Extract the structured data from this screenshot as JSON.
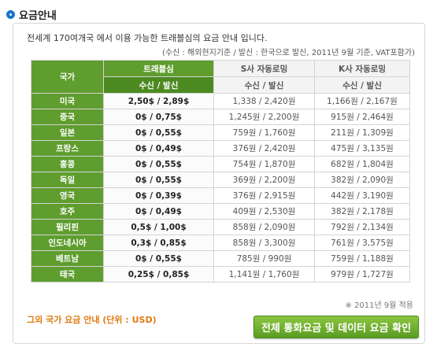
{
  "title": "요금안내",
  "intro": "전세계 170여개국 에서 이용 가능한 트래블심의 요금 안내 입니다.",
  "note": "(수신 : 해외현지기준 / 발신 : 한국으로 발신, 2011년 9월 기준, VAT포함가)",
  "table": {
    "country_header": "국가",
    "col1_name": "트래블심",
    "col2_name": "S사 자동로밍",
    "col3_name": "K사 자동로밍",
    "sub_header": "수신 / 발신",
    "rows": [
      {
        "country": "미국",
        "c1": "2,50$ / 2,89$",
        "c2": "1,338 / 2,420원",
        "c3": "1,166원 / 2,167원"
      },
      {
        "country": "중국",
        "c1": "0$ / 0,75$",
        "c2": "1,245원 / 2,200원",
        "c3": "915원 / 2,464원"
      },
      {
        "country": "일본",
        "c1": "0$ / 0,55$",
        "c2": "759원 / 1,760원",
        "c3": "211원 / 1,309원"
      },
      {
        "country": "프랑스",
        "c1": "0$ / 0,49$",
        "c2": "376원 / 2,420원",
        "c3": "475원 / 3,135원"
      },
      {
        "country": "홍콩",
        "c1": "0$ / 0,55$",
        "c2": "754원 / 1,870원",
        "c3": "682원 / 1,804원"
      },
      {
        "country": "독일",
        "c1": "0$ / 0,55$",
        "c2": "369원 / 2,200원",
        "c3": "382원 / 2,090원"
      },
      {
        "country": "영국",
        "c1": "0$ / 0,39$",
        "c2": "376원 / 2,915원",
        "c3": "442원 / 3,190원"
      },
      {
        "country": "호주",
        "c1": "0$ / 0,49$",
        "c2": "409원 / 2,530원",
        "c3": "382원 / 2,178원"
      },
      {
        "country": "필리핀",
        "c1": "0,5$ / 1,00$",
        "c2": "858원 / 2,090원",
        "c3": "792원 / 2,134원"
      },
      {
        "country": "인도네시아",
        "c1": "0,3$ / 0,85$",
        "c2": "858원 / 3,300원",
        "c3": "761원 / 3,575원"
      },
      {
        "country": "베트남",
        "c1": "0$ / 0,55$",
        "c2": "785원 / 990원",
        "c3": "759원 / 1,188원"
      },
      {
        "country": "태국",
        "c1": "0,25$ / 0,85$",
        "c2": "1,141원 / 1,760원",
        "c3": "979원 / 1,727원"
      }
    ]
  },
  "footnote": "※ 2011년 9월 적용",
  "other_link": "그외 국가 요금 안내 (단위 : USD)",
  "confirm_button": "전체 통화요금 및 데이터 요금 확인",
  "colors": {
    "accent_green": "#5e9d2e",
    "title_bullet": "#1a73c8",
    "link_orange": "#e07a10"
  }
}
